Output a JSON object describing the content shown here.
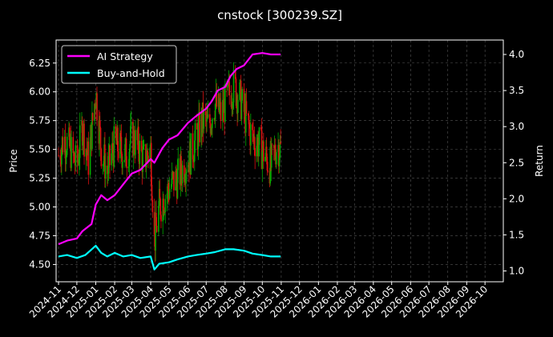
{
  "chart_data": {
    "type": "line",
    "title": "cnstock [300239.SZ]",
    "ylabel": "Price",
    "y2label": "Return",
    "ylim": [
      4.35,
      6.45
    ],
    "y2lim": [
      0.85,
      4.2
    ],
    "yticks": [
      "4.50",
      "4.75",
      "5.00",
      "5.25",
      "5.50",
      "5.75",
      "6.00",
      "6.25"
    ],
    "y2ticks": [
      "1.0",
      "1.5",
      "2.0",
      "2.5",
      "3.0",
      "3.5",
      "4.0"
    ],
    "xticks": [
      "2024-11",
      "2024-12",
      "2025-01",
      "2025-02",
      "2025-03",
      "2025-04",
      "2025-05",
      "2025-06",
      "2025-07",
      "2025-08",
      "2025-09",
      "2025-10",
      "2025-11",
      "2025-12",
      "2026-01",
      "2026-02",
      "2026-03",
      "2026-04",
      "2026-05",
      "2026-06",
      "2026-07",
      "2026-08",
      "2026-09",
      "2026-10"
    ],
    "xlim": [
      "2024-10-28",
      "2026-10-31"
    ],
    "grid": true,
    "legend": "top-left",
    "colors": {
      "up": "#00aa00",
      "down": "#dd1111",
      "strategy": "#ff00ff",
      "buyhold": "#00ffff"
    },
    "series": [
      {
        "name": "AI Strategy",
        "axis": "right",
        "x": [
          "2024-11-01",
          "2024-11-15",
          "2024-12-01",
          "2024-12-10",
          "2024-12-25",
          "2025-01-01",
          "2025-01-10",
          "2025-01-20",
          "2025-02-01",
          "2025-02-15",
          "2025-03-01",
          "2025-03-15",
          "2025-04-01",
          "2025-04-07",
          "2025-04-20",
          "2025-05-01",
          "2025-05-15",
          "2025-06-01",
          "2025-06-15",
          "2025-07-01",
          "2025-07-10",
          "2025-07-20",
          "2025-08-01",
          "2025-08-10",
          "2025-08-20",
          "2025-09-01",
          "2025-09-15",
          "2025-10-01",
          "2025-10-15",
          "2025-10-31"
        ],
        "y": [
          1.37,
          1.42,
          1.45,
          1.55,
          1.65,
          1.92,
          2.05,
          1.98,
          2.05,
          2.2,
          2.35,
          2.4,
          2.55,
          2.5,
          2.7,
          2.82,
          2.88,
          3.05,
          3.15,
          3.25,
          3.35,
          3.5,
          3.55,
          3.7,
          3.8,
          3.85,
          4.0,
          4.02,
          4.0,
          4.0
        ]
      },
      {
        "name": "Buy-and-Hold",
        "axis": "right",
        "x": [
          "2024-11-01",
          "2024-11-15",
          "2024-12-01",
          "2024-12-15",
          "2025-01-01",
          "2025-01-10",
          "2025-01-20",
          "2025-02-01",
          "2025-02-15",
          "2025-03-01",
          "2025-03-15",
          "2025-04-01",
          "2025-04-07",
          "2025-04-15",
          "2025-05-01",
          "2025-05-15",
          "2025-06-01",
          "2025-06-15",
          "2025-07-01",
          "2025-07-15",
          "2025-08-01",
          "2025-08-15",
          "2025-09-01",
          "2025-09-15",
          "2025-10-01",
          "2025-10-15",
          "2025-10-31"
        ],
        "y": [
          1.2,
          1.22,
          1.18,
          1.22,
          1.35,
          1.25,
          1.2,
          1.25,
          1.2,
          1.22,
          1.18,
          1.2,
          1.02,
          1.1,
          1.12,
          1.16,
          1.2,
          1.22,
          1.24,
          1.26,
          1.3,
          1.3,
          1.28,
          1.24,
          1.22,
          1.2,
          1.2
        ]
      }
    ],
    "price_path": {
      "x": [
        "2024-11-01",
        "2024-11-10",
        "2024-11-20",
        "2024-12-01",
        "2024-12-10",
        "2024-12-20",
        "2025-01-01",
        "2025-01-10",
        "2025-01-20",
        "2025-02-01",
        "2025-02-10",
        "2025-02-20",
        "2025-03-01",
        "2025-03-10",
        "2025-03-20",
        "2025-04-01",
        "2025-04-07",
        "2025-04-15",
        "2025-04-25",
        "2025-05-05",
        "2025-05-15",
        "2025-05-25",
        "2025-06-05",
        "2025-06-15",
        "2025-06-25",
        "2025-07-05",
        "2025-07-15",
        "2025-07-25",
        "2025-08-05",
        "2025-08-15",
        "2025-08-25",
        "2025-09-05",
        "2025-09-15",
        "2025-09-25",
        "2025-10-05",
        "2025-10-15",
        "2025-10-25",
        "2025-10-31"
      ],
      "y": [
        5.45,
        5.6,
        5.5,
        5.35,
        5.7,
        5.4,
        6.0,
        5.5,
        5.3,
        5.55,
        5.5,
        5.45,
        5.6,
        5.55,
        5.4,
        5.5,
        4.7,
        5.0,
        5.1,
        5.2,
        5.25,
        5.35,
        5.45,
        5.6,
        5.75,
        5.7,
        5.9,
        5.8,
        5.95,
        6.05,
        5.95,
        5.75,
        5.6,
        5.55,
        5.45,
        5.35,
        5.55,
        5.5
      ]
    }
  }
}
